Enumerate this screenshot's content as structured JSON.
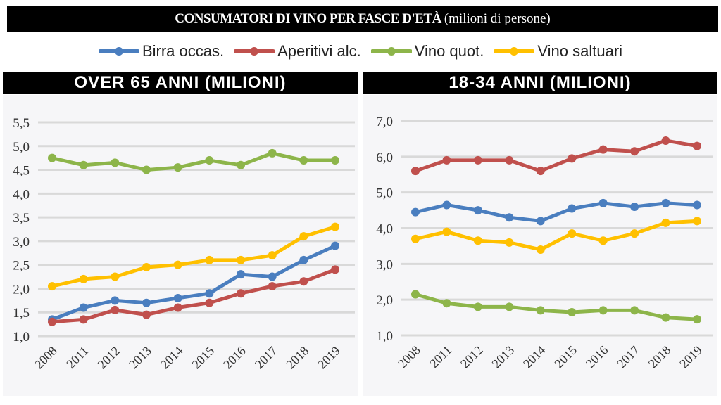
{
  "title": {
    "main": "CONSUMATORI DI VINO PER FASCE D'ETÀ",
    "sub": "(milioni di persone)"
  },
  "legend": [
    {
      "name": "Birra occas.",
      "color": "#4a7ebf"
    },
    {
      "name": "Aperitivi alc.",
      "color": "#c0504d"
    },
    {
      "name": "Vino quot.",
      "color": "#8db54a"
    },
    {
      "name": "Vino saltuari",
      "color": "#ffc000"
    }
  ],
  "chart_data": [
    {
      "type": "line",
      "title": "OVER 65 ANNI (MILIONI)",
      "categories": [
        "2008",
        "2011",
        "2012",
        "2013",
        "2014",
        "2015",
        "2016",
        "2017",
        "2018",
        "2019"
      ],
      "ylim": [
        1.0,
        5.5
      ],
      "yticks": [
        "1,0",
        "1,5",
        "2,0",
        "2,5",
        "3,0",
        "3,5",
        "4,0",
        "4,5",
        "5,0",
        "5,5"
      ],
      "grid": true,
      "series": [
        {
          "name": "Birra occas.",
          "color": "#4a7ebf",
          "values": [
            1.35,
            1.6,
            1.75,
            1.7,
            1.8,
            1.9,
            2.3,
            2.25,
            2.6,
            2.9
          ]
        },
        {
          "name": "Aperitivi alc.",
          "color": "#c0504d",
          "values": [
            1.3,
            1.35,
            1.55,
            1.45,
            1.6,
            1.7,
            1.9,
            2.05,
            2.15,
            2.4
          ]
        },
        {
          "name": "Vino quot.",
          "color": "#8db54a",
          "values": [
            4.75,
            4.6,
            4.65,
            4.5,
            4.55,
            4.7,
            4.6,
            4.85,
            4.7,
            4.7
          ]
        },
        {
          "name": "Vino saltuari",
          "color": "#ffc000",
          "values": [
            2.05,
            2.2,
            2.25,
            2.45,
            2.5,
            2.6,
            2.6,
            2.7,
            3.1,
            3.3
          ]
        }
      ]
    },
    {
      "type": "line",
      "title": "18-34 ANNI (MILIONI)",
      "categories": [
        "2008",
        "2011",
        "2012",
        "2013",
        "2014",
        "2015",
        "2016",
        "2017",
        "2018",
        "2019"
      ],
      "ylim": [
        1.0,
        7.0
      ],
      "yticks": [
        "1,0",
        "2,0",
        "3,0",
        "4,0",
        "5,0",
        "6,0",
        "7,0"
      ],
      "grid": true,
      "series": [
        {
          "name": "Birra occas.",
          "color": "#4a7ebf",
          "values": [
            4.45,
            4.65,
            4.5,
            4.3,
            4.2,
            4.55,
            4.7,
            4.6,
            4.7,
            4.65
          ]
        },
        {
          "name": "Aperitivi alc.",
          "color": "#c0504d",
          "values": [
            5.6,
            5.9,
            5.9,
            5.9,
            5.6,
            5.95,
            6.2,
            6.15,
            6.45,
            6.3
          ]
        },
        {
          "name": "Vino quot.",
          "color": "#8db54a",
          "values": [
            2.15,
            1.9,
            1.8,
            1.8,
            1.7,
            1.65,
            1.7,
            1.7,
            1.5,
            1.45
          ]
        },
        {
          "name": "Vino saltuari",
          "color": "#ffc000",
          "values": [
            3.7,
            3.9,
            3.65,
            3.6,
            3.4,
            3.85,
            3.65,
            3.85,
            4.15,
            4.2
          ]
        }
      ]
    }
  ]
}
